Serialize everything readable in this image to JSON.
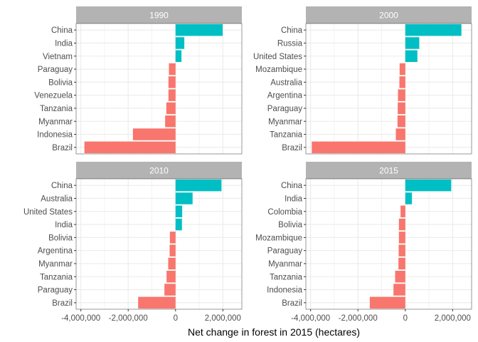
{
  "chart_data": {
    "type": "bar",
    "orientation": "horizontal",
    "xlabel": "Net change in forest in 2015 (hectares)",
    "ylabel": "",
    "xlim": [
      -4200000,
      2800000
    ],
    "x_ticks": [
      -4000000,
      -2000000,
      0,
      2000000
    ],
    "x_tick_labels": [
      "-4,000,000",
      "-2,000,000",
      "0",
      "2,000,000"
    ],
    "grid": true,
    "legend": "none",
    "colors": {
      "positive": "#00BFC4",
      "negative": "#F8766D",
      "strip": "#b3b3b3",
      "grid": "#ebebeb",
      "panel_border": "#333333"
    },
    "panels": [
      {
        "title": "1990",
        "categories": [
          "China",
          "India",
          "Vietnam",
          "Paraguay",
          "Bolivia",
          "Venezuela",
          "Tanzania",
          "Myanmar",
          "Indonesia",
          "Brazil"
        ],
        "values": [
          1990000,
          370000,
          250000,
          -280000,
          -300000,
          -300000,
          -390000,
          -440000,
          -1800000,
          -3850000
        ]
      },
      {
        "title": "2000",
        "categories": [
          "China",
          "Russia",
          "United States",
          "Mozambique",
          "Australia",
          "Argentina",
          "Paraguay",
          "Myanmar",
          "Tanzania",
          "Brazil"
        ],
        "values": [
          2370000,
          590000,
          510000,
          -240000,
          -250000,
          -310000,
          -320000,
          -330000,
          -400000,
          -3950000
        ]
      },
      {
        "title": "2010",
        "categories": [
          "China",
          "Australia",
          "United States",
          "India",
          "Bolivia",
          "Argentina",
          "Myanmar",
          "Tanzania",
          "Paraguay",
          "Brazil"
        ],
        "values": [
          1940000,
          720000,
          280000,
          270000,
          -240000,
          -250000,
          -310000,
          -380000,
          -470000,
          -1580000
        ]
      },
      {
        "title": "2015",
        "categories": [
          "China",
          "India",
          "Colombia",
          "Bolivia",
          "Mozambique",
          "Paraguay",
          "Myanmar",
          "Tanzania",
          "Indonesia",
          "Brazil"
        ],
        "values": [
          1940000,
          280000,
          -200000,
          -270000,
          -270000,
          -280000,
          -290000,
          -430000,
          -500000,
          -1500000
        ]
      }
    ]
  }
}
